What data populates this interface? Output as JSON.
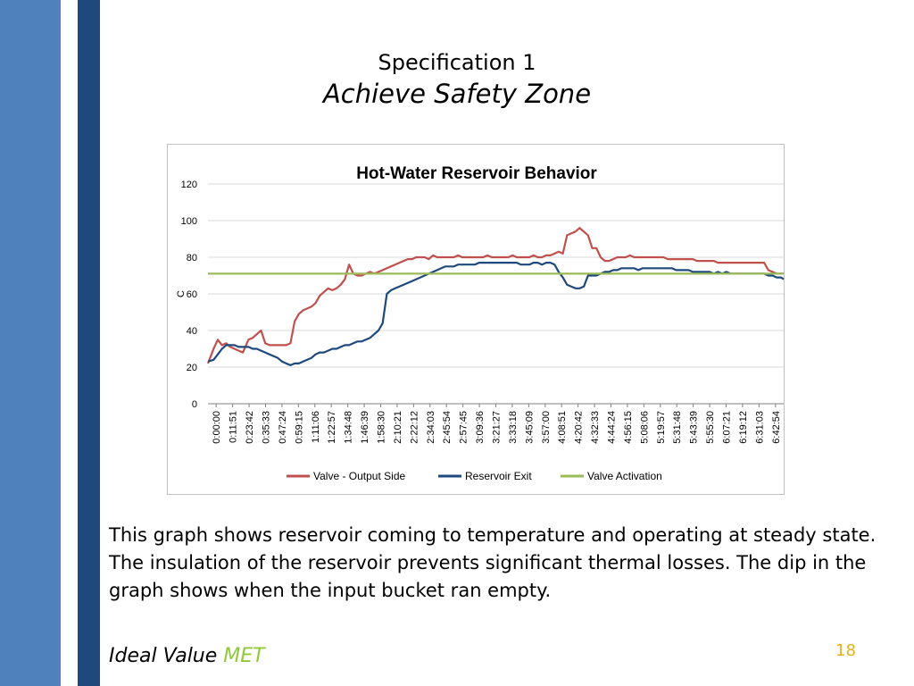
{
  "slide": {
    "title": "Specification 1",
    "subtitle": "Achieve Safety Zone",
    "body": "This graph shows reservoir coming to temperature and operating at steady state.  The insulation of the reservoir prevents significant thermal losses.  The dip in the graph shows when the input bucket ran empty.",
    "ideal_label": "Ideal Value",
    "ideal_status": "MET",
    "page_number": "18",
    "colors": {
      "bar_light": "#4f81bd",
      "bar_dark": "#1f497d",
      "met": "#8fc93a",
      "page_number": "#e6b219"
    }
  },
  "chart_data": {
    "type": "line",
    "title": "Hot-Water Reservoir Behavior",
    "xlabel": "",
    "ylabel": "C",
    "ylim": [
      0,
      120
    ],
    "yticks": [
      0,
      20,
      40,
      60,
      80,
      100,
      120
    ],
    "grid": true,
    "legend_position": "bottom",
    "x_tick_labels": [
      "0:00:00",
      "0:11:51",
      "0:23:42",
      "0:35:33",
      "0:47:24",
      "0:59:15",
      "1:11:06",
      "1:22:57",
      "1:34:48",
      "1:46:39",
      "1:58:30",
      "2:10:21",
      "2:22:12",
      "2:34:03",
      "2:45:54",
      "2:57:45",
      "3:09:36",
      "3:21:27",
      "3:33:18",
      "3:45:09",
      "3:57:00",
      "4:08:51",
      "4:20:42",
      "4:32:33",
      "4:44:24",
      "4:56:15",
      "5:08:06",
      "5:19:57",
      "5:31:48",
      "5:43:39",
      "5:55:30",
      "6:07:21",
      "6:19:12",
      "6:31:03",
      "6:42:54"
    ],
    "x_range_minutes": [
      0,
      412
    ],
    "series": [
      {
        "name": "Valve - Output Side",
        "color": "#c0504d",
        "x_minutes": [
          0,
          4,
          7,
          10,
          13,
          16,
          19,
          22,
          25,
          29,
          32,
          35,
          38,
          41,
          44,
          47,
          50,
          53,
          56,
          59,
          62,
          65,
          68,
          71,
          74,
          77,
          80,
          83,
          86,
          89,
          92,
          95,
          98,
          101,
          104,
          107,
          110,
          113,
          116,
          119,
          122,
          125,
          128,
          131,
          134,
          137,
          140,
          143,
          146,
          149,
          152,
          155,
          158,
          161,
          164,
          167,
          170,
          173,
          176,
          179,
          182,
          185,
          188,
          191,
          194,
          197,
          200,
          203,
          206,
          209,
          212,
          215,
          218,
          221,
          224,
          227,
          230,
          233,
          236,
          239,
          242,
          245,
          248,
          251,
          254,
          257,
          260,
          263,
          266,
          269,
          272,
          275,
          278,
          281,
          284,
          287,
          290,
          293,
          296,
          299,
          302,
          305,
          308,
          311,
          314,
          317,
          320,
          323,
          326,
          329,
          332,
          335,
          338,
          341,
          344,
          347,
          350,
          353,
          356,
          359,
          362,
          365,
          368,
          371,
          374,
          377,
          380,
          383,
          386,
          389,
          392,
          395,
          398,
          401,
          404,
          407,
          410,
          412
        ],
        "values": [
          22,
          30,
          35,
          32,
          33,
          31,
          30,
          29,
          28,
          35,
          36,
          38,
          40,
          33,
          32,
          32,
          32,
          32,
          32,
          33,
          45,
          49,
          51,
          52,
          53,
          55,
          59,
          61,
          63,
          62,
          63,
          65,
          68,
          76,
          71,
          70,
          70,
          71,
          72,
          71,
          72,
          73,
          74,
          75,
          76,
          77,
          78,
          79,
          79,
          80,
          80,
          80,
          79,
          81,
          80,
          80,
          80,
          80,
          80,
          81,
          80,
          80,
          80,
          80,
          80,
          80,
          81,
          80,
          80,
          80,
          80,
          80,
          81,
          80,
          80,
          80,
          80,
          81,
          80,
          80,
          81,
          81,
          82,
          83,
          82,
          92,
          93,
          94,
          96,
          94,
          92,
          85,
          85,
          80,
          78,
          78,
          79,
          80,
          80,
          80,
          81,
          80,
          80,
          80,
          80,
          80,
          80,
          80,
          80,
          79,
          79,
          79,
          79,
          79,
          79,
          79,
          78,
          78,
          78,
          78,
          78,
          77,
          77,
          77,
          77,
          77,
          77,
          77,
          77,
          77,
          77,
          77,
          77,
          73,
          72,
          71,
          71,
          71
        ]
      },
      {
        "name": "Reservoir Exit",
        "color": "#1f497d",
        "x_minutes": [
          0,
          4,
          7,
          10,
          13,
          16,
          19,
          22,
          25,
          29,
          32,
          35,
          38,
          41,
          44,
          47,
          50,
          53,
          56,
          59,
          62,
          65,
          68,
          71,
          74,
          77,
          80,
          83,
          86,
          89,
          92,
          95,
          98,
          101,
          104,
          107,
          110,
          113,
          116,
          119,
          122,
          125,
          128,
          131,
          134,
          137,
          140,
          143,
          146,
          149,
          152,
          155,
          158,
          161,
          164,
          167,
          170,
          173,
          176,
          179,
          182,
          185,
          188,
          191,
          194,
          197,
          200,
          203,
          206,
          209,
          212,
          215,
          218,
          221,
          224,
          227,
          230,
          233,
          236,
          239,
          242,
          245,
          248,
          251,
          254,
          257,
          260,
          263,
          266,
          269,
          272,
          275,
          278,
          281,
          284,
          287,
          290,
          293,
          296,
          299,
          302,
          305,
          308,
          311,
          314,
          317,
          320,
          323,
          326,
          329,
          332,
          335,
          338,
          341,
          344,
          347,
          350,
          353,
          356,
          359,
          362,
          365,
          368,
          371,
          374,
          377,
          380,
          383,
          386,
          389,
          392,
          395,
          398,
          401,
          404,
          407,
          410,
          412
        ],
        "values": [
          23,
          24,
          27,
          30,
          32,
          32,
          32,
          31,
          31,
          31,
          30,
          30,
          29,
          28,
          27,
          26,
          25,
          23,
          22,
          21,
          22,
          22,
          23,
          24,
          25,
          27,
          28,
          28,
          29,
          30,
          30,
          31,
          32,
          32,
          33,
          34,
          34,
          35,
          36,
          38,
          40,
          44,
          60,
          62,
          63,
          64,
          65,
          66,
          67,
          68,
          69,
          70,
          71,
          72,
          73,
          74,
          75,
          75,
          75,
          76,
          76,
          76,
          76,
          76,
          77,
          77,
          77,
          77,
          77,
          77,
          77,
          77,
          77,
          77,
          76,
          76,
          76,
          77,
          77,
          76,
          77,
          77,
          76,
          72,
          69,
          65,
          64,
          63,
          63,
          64,
          70,
          70,
          70,
          71,
          72,
          72,
          73,
          73,
          74,
          74,
          74,
          74,
          73,
          74,
          74,
          74,
          74,
          74,
          74,
          74,
          74,
          73,
          73,
          73,
          73,
          72,
          72,
          72,
          72,
          72,
          71,
          72,
          71,
          72,
          71,
          71,
          71,
          71,
          71,
          71,
          71,
          71,
          71,
          70,
          70,
          69,
          69,
          68
        ]
      },
      {
        "name": "Valve Activation",
        "color": "#9bbb59",
        "x_minutes": [
          0,
          412
        ],
        "values": [
          71,
          71
        ]
      }
    ]
  }
}
